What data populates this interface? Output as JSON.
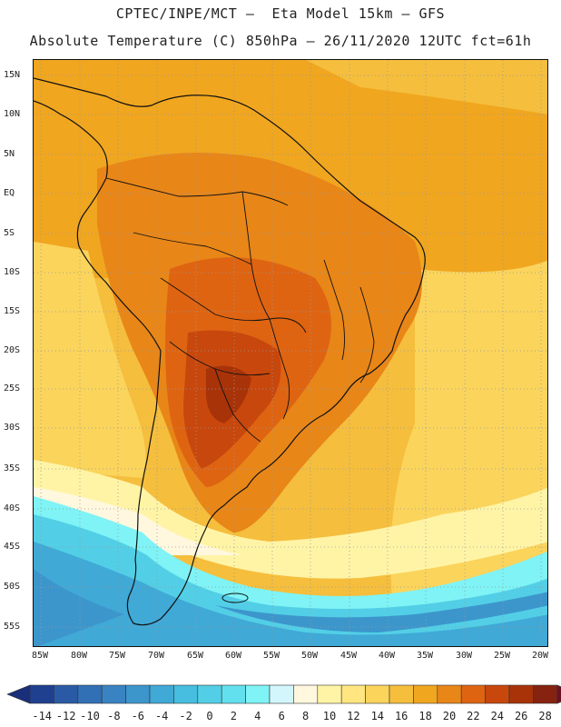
{
  "header": {
    "line1": "CPTEC/INPE/MCT –  Eta Model 15km – GFS",
    "line2": "Absolute Temperature (C) 850hPa – 26/11/2020 12UTC fct=61h"
  },
  "map": {
    "lat_labels": [
      "15N",
      "10N",
      "5N",
      "EQ",
      "5S",
      "10S",
      "15S",
      "20S",
      "25S",
      "30S",
      "35S",
      "40S",
      "45S",
      "50S",
      "55S"
    ],
    "lon_labels": [
      "85W",
      "80W",
      "75W",
      "70W",
      "65W",
      "60W",
      "55W",
      "50W",
      "45W",
      "40W",
      "35W",
      "30W",
      "25W",
      "20W"
    ],
    "regions": [
      {
        "name": "warm-ocean-north",
        "temperature": 18
      },
      {
        "name": "continental-interior",
        "temperature": 22
      },
      {
        "name": "hot-core-chaco",
        "temperature": 24
      },
      {
        "name": "temperate-band",
        "temperature": 10
      },
      {
        "name": "cold-south-pacific",
        "temperature": 0
      },
      {
        "name": "cold-southern-ocean",
        "temperature": -4
      }
    ]
  },
  "colorbar": {
    "labels": [
      "-14",
      "-12",
      "-10",
      "-8",
      "-6",
      "-4",
      "-2",
      "0",
      "2",
      "4",
      "6",
      "8",
      "10",
      "12",
      "14",
      "16",
      "18",
      "20",
      "22",
      "24",
      "26",
      "28"
    ],
    "colors": [
      "#1f3f8f",
      "#2a5aa5",
      "#3170b5",
      "#3a83c2",
      "#3c96cc",
      "#40a9d6",
      "#47bddf",
      "#52cfe6",
      "#62e0ee",
      "#7ff3f5",
      "#d2f6fb",
      "#fff7de",
      "#fff4a6",
      "#ffe680",
      "#fbd45c",
      "#f5be3d",
      "#f0a61f",
      "#e88618",
      "#de6412",
      "#c8470d",
      "#a83309",
      "#862310"
    ],
    "low_end_color": "#1a2f7a",
    "high_end_color": "#6f0f24"
  }
}
